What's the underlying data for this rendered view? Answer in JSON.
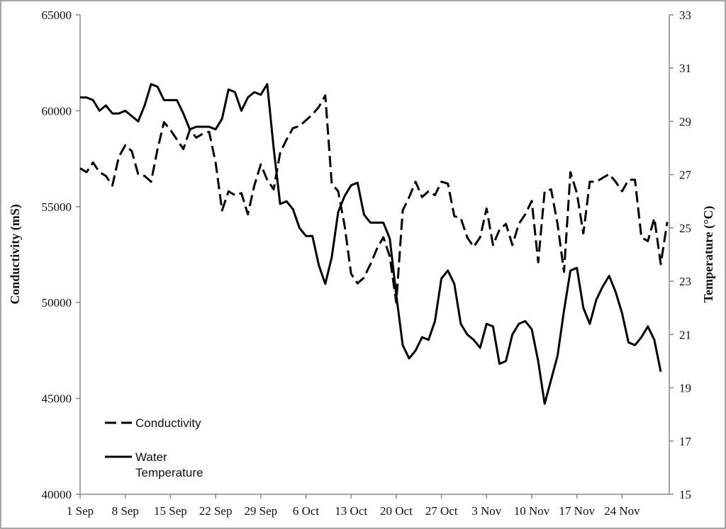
{
  "chart_data": {
    "type": "line",
    "title": "",
    "xlabel": "",
    "ylabel": "Conductivity (mS)",
    "y2label": "Temperature (°C)",
    "ylim": [
      40000,
      65000
    ],
    "y2lim": [
      15,
      33
    ],
    "x_ticks": [
      "1 Sep",
      "8 Sep",
      "15 Sep",
      "22 Sep",
      "29 Sep",
      "6 Oct",
      "13 Oct",
      "20 Oct",
      "27 Oct",
      "3 Nov",
      "10 Nov",
      "17 Nov",
      "24 Nov"
    ],
    "y_ticks": [
      "40000",
      "45000",
      "50000",
      "55000",
      "60000",
      "65000"
    ],
    "y2_ticks": [
      "15",
      "17",
      "19",
      "21",
      "23",
      "25",
      "27",
      "29",
      "31",
      "33"
    ],
    "grid": false,
    "legend_position": "bottom-left",
    "series": [
      {
        "name": "Conductivity",
        "axis": "left",
        "style": "dashed",
        "color": "#000000",
        "values": [
          57000,
          56800,
          57300,
          56800,
          56600,
          56100,
          57600,
          58200,
          57900,
          56700,
          56600,
          56300,
          58000,
          59400,
          59000,
          58500,
          58000,
          59000,
          58600,
          58800,
          58900,
          57300,
          54800,
          55800,
          55600,
          55700,
          54600,
          56100,
          57200,
          56400,
          55900,
          57800,
          58500,
          59100,
          59200,
          59500,
          59800,
          60200,
          60800,
          56200,
          55800,
          54000,
          51500,
          51000,
          51300,
          52000,
          52800,
          53400,
          52400,
          50000,
          54800,
          55500,
          56300,
          55500,
          55800,
          55600,
          56300,
          56200,
          54500,
          54400,
          53400,
          52900,
          53400,
          54900,
          53000,
          53800,
          54100,
          53000,
          54100,
          54600,
          55300,
          52100,
          55800,
          55900,
          54100,
          51600,
          56800,
          55700,
          53600,
          56300,
          56300,
          56500,
          56700,
          56300,
          55800,
          56400,
          56400,
          53400,
          53200,
          54400,
          52000,
          54200
        ]
      },
      {
        "name": "Water Temperature",
        "axis": "right",
        "style": "solid",
        "color": "#000000",
        "values": [
          29.9,
          29.9,
          29.8,
          29.4,
          29.6,
          29.3,
          29.3,
          29.4,
          29.2,
          29.0,
          29.6,
          30.4,
          30.3,
          29.8,
          29.8,
          29.8,
          29.3,
          28.7,
          28.8,
          28.8,
          28.8,
          28.7,
          29.1,
          30.2,
          30.1,
          29.4,
          29.9,
          30.1,
          30.0,
          30.4,
          28.0,
          25.9,
          26.0,
          25.7,
          25.0,
          24.7,
          24.7,
          23.6,
          22.9,
          23.9,
          25.6,
          26.2,
          26.6,
          26.7,
          25.5,
          25.2,
          25.2,
          25.2,
          24.6,
          22.5,
          20.6,
          20.1,
          20.4,
          20.9,
          20.8,
          21.5,
          23.1,
          23.4,
          22.9,
          21.4,
          21.0,
          20.8,
          20.5,
          21.4,
          21.3,
          19.9,
          20.0,
          21.0,
          21.4,
          21.5,
          21.2,
          20.0,
          18.4,
          19.3,
          20.2,
          21.9,
          23.4,
          23.5,
          22.0,
          21.4,
          22.3,
          22.8,
          23.2,
          22.6,
          21.8,
          20.7,
          20.6,
          20.9,
          21.3,
          20.8,
          19.6
        ]
      }
    ]
  }
}
